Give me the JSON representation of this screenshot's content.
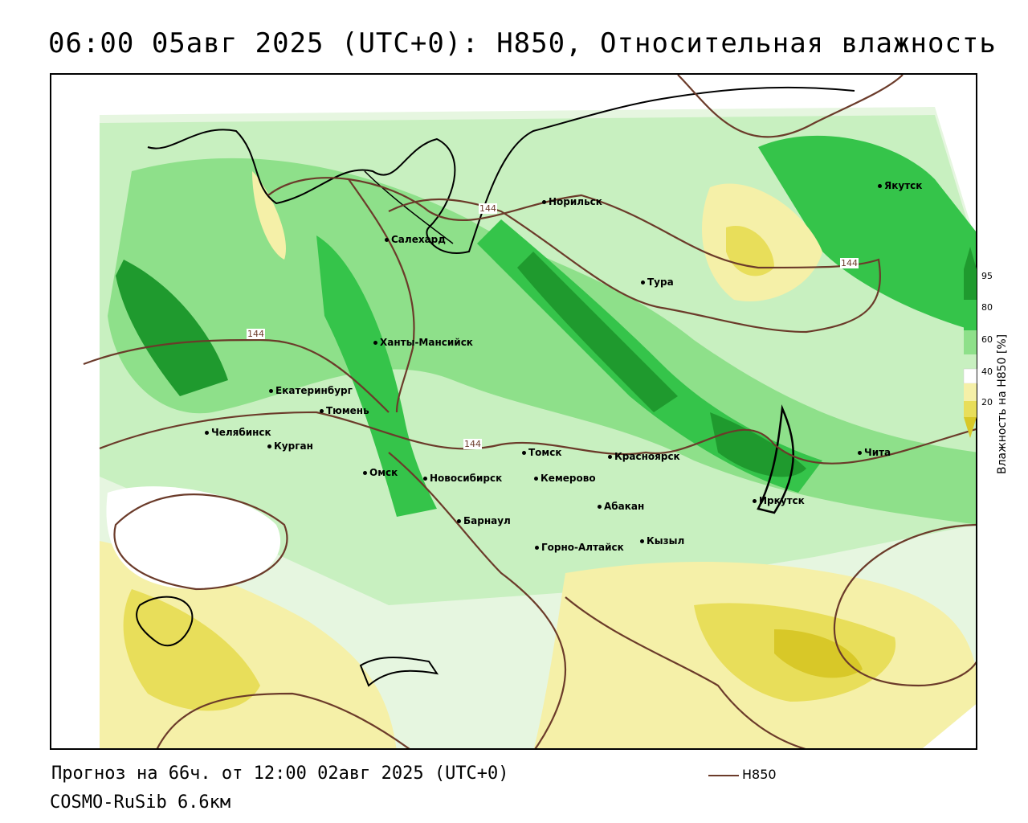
{
  "header": {
    "title": "06:00 05авг 2025 (UTC+0): H850, Относительная влажность"
  },
  "colors": {
    "green_dark": "#1f9a2e",
    "green_mid": "#35c44a",
    "green_light": "#8ee08a",
    "green_pale": "#c8f0c0",
    "yellow_pale": "#f5f0a8",
    "yellow_mid": "#e8de5a",
    "yellow_dark": "#d8c828",
    "contour": "#6b3b2a"
  },
  "map": {
    "contour_label": "144",
    "cities": [
      {
        "name": "Якутск"
      },
      {
        "name": "Норильск"
      },
      {
        "name": "Салехард"
      },
      {
        "name": "Тура"
      },
      {
        "name": "Ханты-Мансийск"
      },
      {
        "name": "Екатеринбург"
      },
      {
        "name": "Тюмень"
      },
      {
        "name": "Челябинск"
      },
      {
        "name": "Курган"
      },
      {
        "name": "Омск"
      },
      {
        "name": "Новосибирск"
      },
      {
        "name": "Томск"
      },
      {
        "name": "Кемерово"
      },
      {
        "name": "Красноярск"
      },
      {
        "name": "Барнаул"
      },
      {
        "name": "Абакан"
      },
      {
        "name": "Горно-Алтайск"
      },
      {
        "name": "Кызыл"
      },
      {
        "name": "Иркутск"
      },
      {
        "name": "Чита"
      }
    ]
  },
  "legend": {
    "title": "Влажность на H850 [%]",
    "ticks": [
      "95",
      "80",
      "60",
      "40",
      "20"
    ],
    "colors": [
      "#1f9a2e",
      "#35c44a",
      "#8ee08a",
      "#c8f0c0",
      "#ffffff",
      "#f5f0a8",
      "#e8de5a",
      "#d8c828"
    ]
  },
  "footer": {
    "forecast": "Прогноз на 66ч. от 12:00 02авг 2025 (UTC+0)",
    "model": "COSMO-RuSib 6.6км",
    "contour_key": "H850"
  }
}
